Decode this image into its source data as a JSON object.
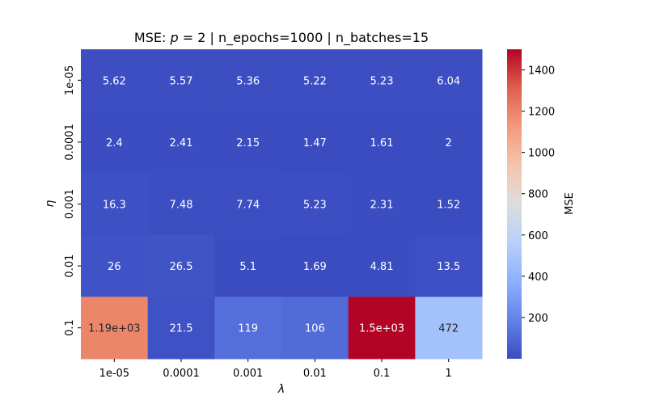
{
  "chart_data": {
    "type": "heatmap",
    "title": "MSE: p = 2 | n_epochs=1000 | n_batches=15",
    "title_parts": {
      "prefix": "MSE: ",
      "var": "p",
      "eq": " = 2",
      "rest": " | n_epochs=1000 | n_batches=15"
    },
    "xlabel": "λ",
    "ylabel": "η",
    "x_categories": [
      "1e-05",
      "0.0001",
      "0.001",
      "0.01",
      "0.1",
      "1"
    ],
    "y_categories": [
      "1e-05",
      "0.0001",
      "0.001",
      "0.01",
      "0.1"
    ],
    "values": [
      [
        5.62,
        5.57,
        5.36,
        5.22,
        5.23,
        6.04
      ],
      [
        2.4,
        2.41,
        2.15,
        1.47,
        1.61,
        2
      ],
      [
        16.3,
        7.48,
        7.74,
        5.23,
        2.31,
        1.52
      ],
      [
        26,
        26.5,
        5.1,
        1.69,
        4.81,
        13.5
      ],
      [
        1190,
        21.5,
        119,
        106,
        1500,
        472
      ]
    ],
    "labels": [
      [
        "5.62",
        "5.57",
        "5.36",
        "5.22",
        "5.23",
        "6.04"
      ],
      [
        "2.4",
        "2.41",
        "2.15",
        "1.47",
        "1.61",
        "2"
      ],
      [
        "16.3",
        "7.48",
        "7.74",
        "5.23",
        "2.31",
        "1.52"
      ],
      [
        "26",
        "26.5",
        "5.1",
        "1.69",
        "4.81",
        "13.5"
      ],
      [
        "1.19e+03",
        "21.5",
        "119",
        "106",
        "1.5e+03",
        "472"
      ]
    ],
    "colorbar": {
      "label": "MSE",
      "colormap": "coolwarm",
      "range": [
        0,
        1500
      ],
      "ticks": [
        200,
        400,
        600,
        800,
        1000,
        1200,
        1400
      ]
    }
  }
}
